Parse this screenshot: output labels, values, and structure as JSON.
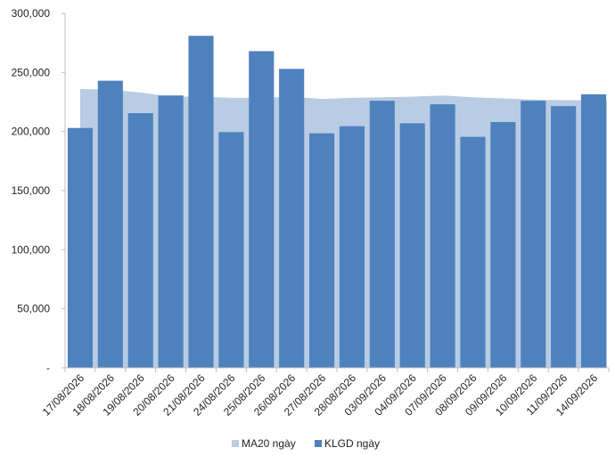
{
  "chart_data": {
    "type": "bar",
    "categories": [
      "17/08/2026",
      "18/08/2026",
      "19/08/2026",
      "20/08/2026",
      "21/08/2026",
      "24/08/2026",
      "25/08/2026",
      "26/08/2026",
      "27/08/2026",
      "28/08/2026",
      "03/09/2026",
      "04/09/2026",
      "07/09/2026",
      "08/09/2026",
      "09/09/2026",
      "10/09/2026",
      "11/09/2026",
      "14/09/2026"
    ],
    "series": [
      {
        "name": "MA20 ngày",
        "type": "area",
        "color": "#b8cce4",
        "values": [
          236000,
          235500,
          233000,
          229500,
          229500,
          228500,
          228500,
          229500,
          227500,
          228500,
          229000,
          229500,
          230500,
          229000,
          228000,
          227000,
          226500,
          226500
        ]
      },
      {
        "name": "KLGD ngày",
        "type": "bar",
        "color": "#4f81bd",
        "values": [
          203000,
          243000,
          215500,
          230500,
          281000,
          199500,
          268000,
          253000,
          198500,
          204500,
          226000,
          207000,
          223000,
          195500,
          208000,
          226000,
          221500,
          231500
        ]
      }
    ],
    "ylim": [
      0,
      300000
    ],
    "yticks": [
      {
        "value": 0,
        "label": "-"
      },
      {
        "value": 50000,
        "label": "50,000"
      },
      {
        "value": 100000,
        "label": "100,000"
      },
      {
        "value": 150000,
        "label": "150,000"
      },
      {
        "value": 200000,
        "label": "200,000"
      },
      {
        "value": 250000,
        "label": "250,000"
      },
      {
        "value": 300000,
        "label": "300,000"
      }
    ],
    "grid": false,
    "legend_position": "bottom-center",
    "axis_color": "#bfbfbf"
  }
}
